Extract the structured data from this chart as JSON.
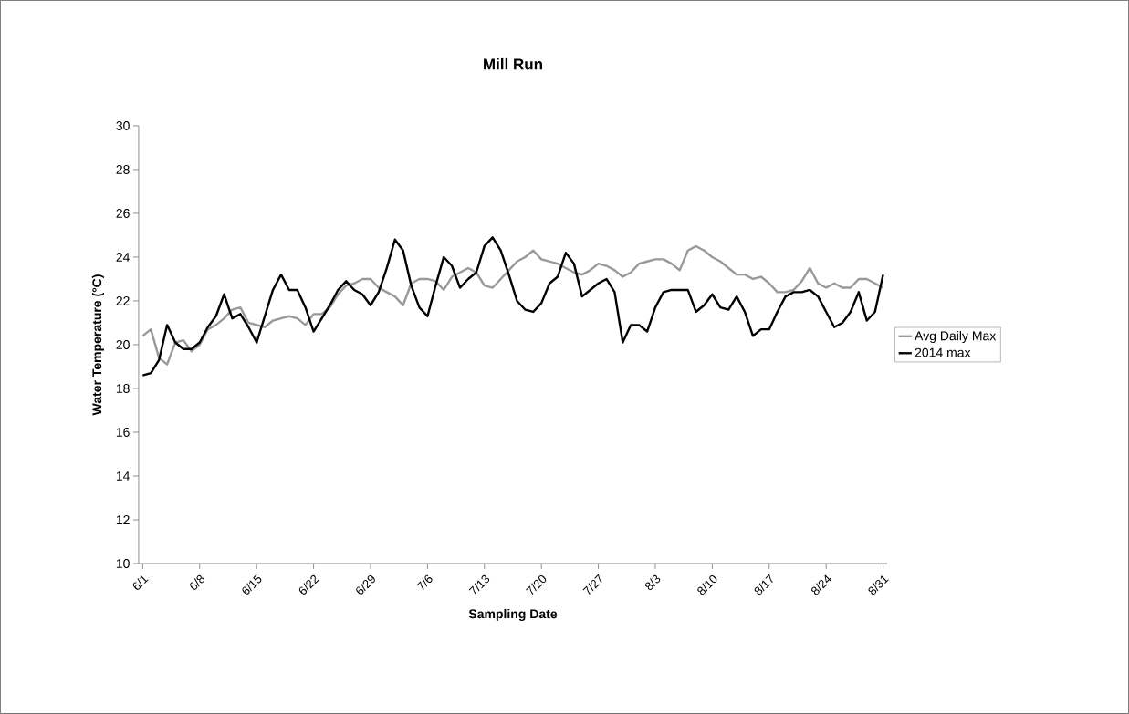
{
  "chart_data": {
    "type": "line",
    "title": "Mill Run",
    "xlabel": "Sampling Date",
    "ylabel": "Water Temperature (°C)",
    "categories": [
      "6/1",
      null,
      null,
      null,
      null,
      null,
      null,
      "6/8",
      null,
      null,
      null,
      null,
      null,
      null,
      "6/15",
      null,
      null,
      null,
      null,
      null,
      null,
      "6/22",
      null,
      null,
      null,
      null,
      null,
      null,
      "6/29",
      null,
      null,
      null,
      null,
      null,
      null,
      "7/6",
      null,
      null,
      null,
      null,
      null,
      null,
      "7/13",
      null,
      null,
      null,
      null,
      null,
      null,
      "7/20",
      null,
      null,
      null,
      null,
      null,
      null,
      "7/27",
      null,
      null,
      null,
      null,
      null,
      null,
      "8/3",
      null,
      null,
      null,
      null,
      null,
      null,
      "8/10",
      null,
      null,
      null,
      null,
      null,
      null,
      "8/17",
      null,
      null,
      null,
      null,
      null,
      null,
      "8/24",
      null,
      null,
      null,
      null,
      null,
      null,
      "8/31"
    ],
    "series": [
      {
        "name": "Avg Daily Max",
        "color": "#999999",
        "values": [
          20.4,
          20.7,
          19.4,
          19.1,
          20.1,
          20.2,
          19.7,
          20.0,
          20.7,
          20.9,
          21.2,
          21.6,
          21.7,
          21.0,
          20.9,
          20.8,
          21.1,
          21.2,
          21.3,
          21.2,
          20.9,
          21.4,
          21.4,
          21.7,
          22.3,
          22.7,
          22.8,
          23.0,
          23.0,
          22.6,
          22.4,
          22.2,
          21.8,
          22.8,
          23.0,
          23.0,
          22.9,
          22.5,
          23.1,
          23.3,
          23.5,
          23.3,
          22.7,
          22.6,
          23.0,
          23.4,
          23.8,
          24.0,
          24.3,
          23.9,
          23.8,
          23.7,
          23.5,
          23.3,
          23.2,
          23.4,
          23.7,
          23.6,
          23.4,
          23.1,
          23.3,
          23.7,
          23.8,
          23.9,
          23.9,
          23.7,
          23.4,
          24.3,
          24.5,
          24.3,
          24.0,
          23.8,
          23.5,
          23.2,
          23.2,
          23.0,
          23.1,
          22.8,
          22.4,
          22.4,
          22.5,
          22.9,
          23.5,
          22.8,
          22.6,
          22.8,
          22.6,
          22.6,
          23.0,
          23.0,
          22.8,
          22.6
        ]
      },
      {
        "name": "2014 max",
        "color": "#000000",
        "values": [
          18.6,
          18.7,
          19.3,
          20.9,
          20.1,
          19.8,
          19.8,
          20.1,
          20.8,
          21.3,
          22.3,
          21.2,
          21.4,
          20.8,
          20.1,
          21.3,
          22.5,
          23.2,
          22.5,
          22.5,
          21.7,
          20.6,
          21.2,
          21.8,
          22.5,
          22.9,
          22.5,
          22.3,
          21.8,
          22.4,
          23.5,
          24.8,
          24.3,
          22.7,
          21.7,
          21.3,
          22.7,
          24.0,
          23.6,
          22.6,
          23.0,
          23.3,
          24.5,
          24.9,
          24.3,
          23.2,
          22.0,
          21.6,
          21.5,
          21.9,
          22.8,
          23.1,
          24.2,
          23.7,
          22.2,
          22.5,
          22.8,
          23.0,
          22.4,
          20.1,
          20.9,
          20.9,
          20.6,
          21.7,
          22.4,
          22.5,
          22.5,
          22.5,
          21.5,
          21.8,
          22.3,
          21.7,
          21.6,
          22.2,
          21.5,
          20.4,
          20.7,
          20.7,
          21.5,
          22.2,
          22.4,
          22.4,
          22.5,
          22.2,
          21.5,
          20.8,
          21.0,
          21.5,
          22.4,
          21.1,
          21.5,
          23.2
        ]
      }
    ],
    "ylim": [
      10,
      30
    ],
    "yticks": [
      10,
      12,
      14,
      16,
      18,
      20,
      22,
      24,
      26,
      28,
      30
    ],
    "legend": "right"
  }
}
